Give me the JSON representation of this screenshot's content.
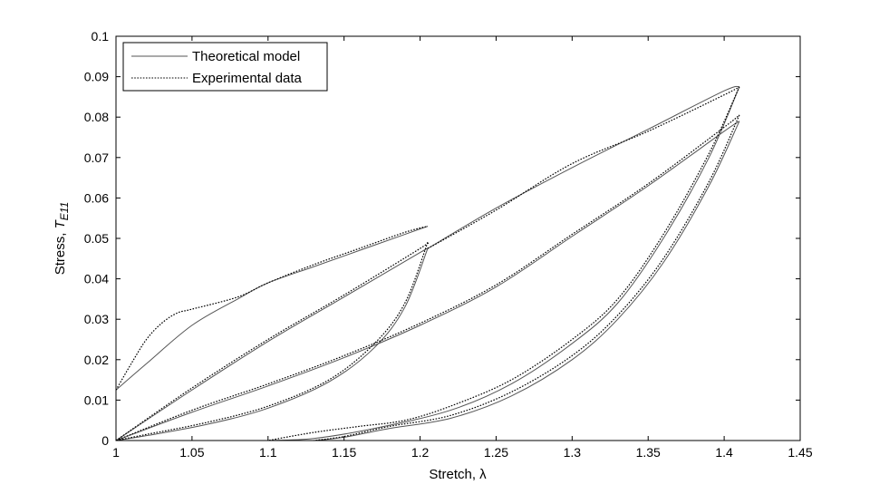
{
  "chart_data": {
    "type": "line",
    "xlabel": "Stretch, λ",
    "ylabel_main": "Stress, ",
    "ylabel_symbol": "T",
    "ylabel_subscript": "E11",
    "xlim": [
      1,
      1.45
    ],
    "ylim": [
      0,
      0.1
    ],
    "xticks": [
      "1",
      "1.05",
      "1.1",
      "1.15",
      "1.2",
      "1.25",
      "1.3",
      "1.35",
      "1.4",
      "1.45"
    ],
    "yticks": [
      "0",
      "0.01",
      "0.02",
      "0.03",
      "0.04",
      "0.05",
      "0.06",
      "0.07",
      "0.08",
      "0.09",
      "0.1"
    ],
    "grid": false,
    "legend_position": "top-left",
    "series": [
      {
        "name": "Theoretical model",
        "style": "solid",
        "color": "#555555",
        "curves": [
          [
            [
              1.0,
              0.0125
            ],
            [
              1.02,
              0.019
            ],
            [
              1.05,
              0.0285
            ],
            [
              1.08,
              0.035
            ],
            [
              1.1,
              0.039
            ],
            [
              1.13,
              0.043
            ],
            [
              1.16,
              0.047
            ],
            [
              1.19,
              0.051
            ],
            [
              1.205,
              0.053
            ]
          ],
          [
            [
              1.205,
              0.0475
            ],
            [
              1.25,
              0.0575
            ],
            [
              1.3,
              0.0675
            ],
            [
              1.35,
              0.077
            ],
            [
              1.4,
              0.0865
            ],
            [
              1.41,
              0.0875
            ]
          ],
          [
            [
              1.41,
              0.0875
            ],
            [
              1.39,
              0.07
            ],
            [
              1.36,
              0.05
            ],
            [
              1.33,
              0.034
            ],
            [
              1.3,
              0.024
            ],
            [
              1.26,
              0.014
            ],
            [
              1.22,
              0.0075
            ],
            [
              1.17,
              0.003
            ],
            [
              1.13,
              0.0005
            ],
            [
              1.1,
              0.0
            ]
          ],
          [
            [
              1.0,
              0.0
            ],
            [
              1.05,
              0.0125
            ],
            [
              1.1,
              0.0245
            ],
            [
              1.15,
              0.0355
            ],
            [
              1.2,
              0.0465
            ],
            [
              1.205,
              0.0475
            ]
          ],
          [
            [
              1.205,
              0.0475
            ],
            [
              1.19,
              0.033
            ],
            [
              1.17,
              0.023
            ],
            [
              1.14,
              0.0145
            ],
            [
              1.1,
              0.008
            ],
            [
              1.06,
              0.004
            ],
            [
              1.02,
              0.0012
            ],
            [
              1.0,
              0.0
            ]
          ],
          [
            [
              1.0,
              0.0
            ],
            [
              1.05,
              0.007
            ],
            [
              1.1,
              0.0135
            ],
            [
              1.15,
              0.0205
            ],
            [
              1.2,
              0.0285
            ],
            [
              1.25,
              0.038
            ],
            [
              1.3,
              0.0505
            ],
            [
              1.35,
              0.063
            ],
            [
              1.4,
              0.0765
            ],
            [
              1.41,
              0.079
            ]
          ],
          [
            [
              1.41,
              0.079
            ],
            [
              1.39,
              0.063
            ],
            [
              1.36,
              0.044
            ],
            [
              1.33,
              0.03
            ],
            [
              1.3,
              0.02
            ],
            [
              1.26,
              0.011
            ],
            [
              1.22,
              0.0055
            ],
            [
              1.18,
              0.003
            ],
            [
              1.15,
              0.0008
            ],
            [
              1.13,
              0.0
            ]
          ]
        ]
      },
      {
        "name": "Experimental data",
        "style": "dotted",
        "color": "#000000",
        "curves": [
          [
            [
              1.0,
              0.0125
            ],
            [
              1.01,
              0.019
            ],
            [
              1.02,
              0.025
            ],
            [
              1.03,
              0.029
            ],
            [
              1.04,
              0.0315
            ],
            [
              1.05,
              0.0325
            ],
            [
              1.08,
              0.0355
            ],
            [
              1.1,
              0.039
            ],
            [
              1.13,
              0.0435
            ],
            [
              1.16,
              0.0475
            ],
            [
              1.19,
              0.0515
            ],
            [
              1.205,
              0.053
            ]
          ],
          [
            [
              1.205,
              0.0475
            ],
            [
              1.25,
              0.057
            ],
            [
              1.3,
              0.0685
            ],
            [
              1.35,
              0.0765
            ],
            [
              1.4,
              0.0855
            ],
            [
              1.41,
              0.0875
            ]
          ],
          [
            [
              1.41,
              0.0875
            ],
            [
              1.39,
              0.071
            ],
            [
              1.36,
              0.051
            ],
            [
              1.33,
              0.035
            ],
            [
              1.3,
              0.025
            ],
            [
              1.26,
              0.015
            ],
            [
              1.22,
              0.0085
            ],
            [
              1.19,
              0.005
            ],
            [
              1.16,
              0.0035
            ],
            [
              1.13,
              0.002
            ],
            [
              1.1,
              0.0
            ]
          ],
          [
            [
              1.0,
              0.0
            ],
            [
              1.05,
              0.013
            ],
            [
              1.1,
              0.025
            ],
            [
              1.15,
              0.036
            ],
            [
              1.2,
              0.0475
            ],
            [
              1.205,
              0.049
            ]
          ],
          [
            [
              1.205,
              0.049
            ],
            [
              1.19,
              0.034
            ],
            [
              1.17,
              0.024
            ],
            [
              1.14,
              0.015
            ],
            [
              1.1,
              0.0085
            ],
            [
              1.06,
              0.0045
            ],
            [
              1.02,
              0.0015
            ],
            [
              1.0,
              0.0
            ]
          ],
          [
            [
              1.0,
              0.0
            ],
            [
              1.05,
              0.0075
            ],
            [
              1.1,
              0.014
            ],
            [
              1.15,
              0.021
            ],
            [
              1.2,
              0.029
            ],
            [
              1.25,
              0.0385
            ],
            [
              1.3,
              0.051
            ],
            [
              1.35,
              0.0635
            ],
            [
              1.4,
              0.0775
            ],
            [
              1.41,
              0.0805
            ]
          ],
          [
            [
              1.41,
              0.0805
            ],
            [
              1.39,
              0.064
            ],
            [
              1.36,
              0.045
            ],
            [
              1.33,
              0.031
            ],
            [
              1.3,
              0.021
            ],
            [
              1.26,
              0.012
            ],
            [
              1.22,
              0.0062
            ],
            [
              1.18,
              0.0035
            ],
            [
              1.15,
              0.001
            ],
            [
              1.13,
              0.0
            ]
          ]
        ]
      }
    ]
  }
}
